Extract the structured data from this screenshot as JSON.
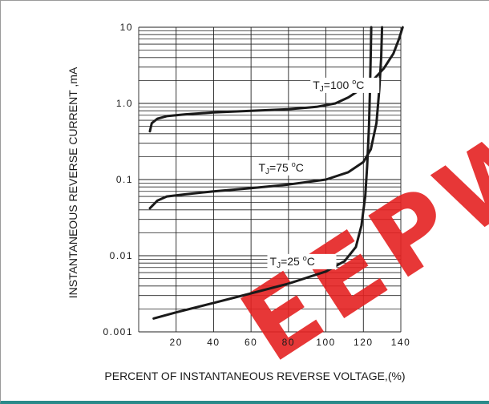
{
  "chart_data": {
    "type": "line",
    "title": "",
    "xlabel": "PERCENT OF INSTANTANEOUS REVERSE VOLTAGE,(%)",
    "ylabel": "INSTANTANEOUS REVERSE CURRENT ,mA",
    "xlim": [
      0,
      140
    ],
    "ylim": [
      0.001,
      10
    ],
    "yscale": "log",
    "grid": true,
    "x_ticks": [
      20,
      40,
      60,
      80,
      100,
      120,
      140
    ],
    "y_ticks": [
      {
        "value": 10,
        "label": "10"
      },
      {
        "value": 1,
        "label": "1.0"
      },
      {
        "value": 0.1,
        "label": "0.1"
      },
      {
        "value": 0.01,
        "label": "0.01"
      },
      {
        "value": 0.001,
        "label": "0.001"
      }
    ],
    "series": [
      {
        "name": "TJ=100 °C",
        "label": {
          "base": "T",
          "sub": "J",
          "mid": "=100",
          "sup": "o",
          "end": "C"
        },
        "points": [
          [
            6,
            0.43
          ],
          [
            7,
            0.55
          ],
          [
            10,
            0.63
          ],
          [
            15,
            0.68
          ],
          [
            25,
            0.72
          ],
          [
            40,
            0.76
          ],
          [
            60,
            0.8
          ],
          [
            80,
            0.84
          ],
          [
            95,
            0.9
          ],
          [
            105,
            1.0
          ],
          [
            112,
            1.2
          ],
          [
            118,
            1.5
          ],
          [
            125,
            2.0
          ],
          [
            131,
            2.9
          ],
          [
            136,
            4.5
          ],
          [
            139,
            7.0
          ],
          [
            141,
            10
          ]
        ]
      },
      {
        "name": "TJ=75 °C",
        "label": {
          "base": "T",
          "sub": "J",
          "mid": "=75",
          "sup": "o",
          "end": "C"
        },
        "points": [
          [
            6,
            0.042
          ],
          [
            10,
            0.053
          ],
          [
            15,
            0.06
          ],
          [
            25,
            0.064
          ],
          [
            40,
            0.07
          ],
          [
            60,
            0.077
          ],
          [
            80,
            0.086
          ],
          [
            100,
            0.1
          ],
          [
            112,
            0.125
          ],
          [
            120,
            0.17
          ],
          [
            124,
            0.25
          ],
          [
            127,
            0.55
          ],
          [
            128.5,
            1.5
          ],
          [
            129.5,
            4.0
          ],
          [
            130,
            10
          ]
        ]
      },
      {
        "name": "TJ=25 °C",
        "label": {
          "base": "T",
          "sub": "J",
          "mid": "=25",
          "sup": "o",
          "end": "C"
        },
        "points": [
          [
            8,
            0.0015
          ],
          [
            20,
            0.0018
          ],
          [
            40,
            0.0024
          ],
          [
            60,
            0.0032
          ],
          [
            80,
            0.0043
          ],
          [
            100,
            0.0062
          ],
          [
            110,
            0.0085
          ],
          [
            116,
            0.013
          ],
          [
            119,
            0.025
          ],
          [
            121,
            0.06
          ],
          [
            122,
            0.15
          ],
          [
            123,
            0.5
          ],
          [
            123.5,
            1.5
          ],
          [
            124,
            5.0
          ],
          [
            124.2,
            10
          ]
        ]
      }
    ],
    "watermark": "EEPW",
    "colors": {
      "curve": "#1a1a1a",
      "grid": "#222222",
      "watermark": "#e52222"
    }
  }
}
